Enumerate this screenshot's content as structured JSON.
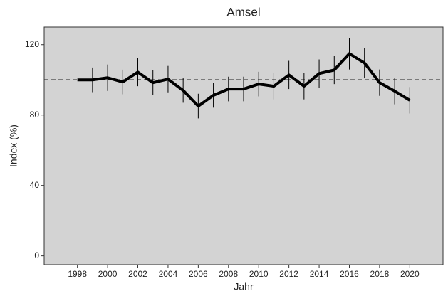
{
  "chart_data": {
    "type": "line",
    "title": "Amsel",
    "x_label": "Jahr",
    "y_label": "Index (%)",
    "x": [
      1998,
      1999,
      2000,
      2001,
      2002,
      2003,
      2004,
      2005,
      2006,
      2007,
      2008,
      2009,
      2010,
      2011,
      2012,
      2013,
      2014,
      2015,
      2016,
      2017,
      2018,
      2019,
      2020
    ],
    "series": [
      {
        "color": "#000000",
        "values": [
          100,
          100,
          101.2,
          98.8,
          104.4,
          98.4,
          100.4,
          94,
          85.1,
          91.2,
          94.8,
          94.8,
          97.6,
          96.4,
          102.8,
          96.4,
          103.6,
          105.6,
          114.9,
          109.6,
          98.4,
          93.6,
          88.4
        ],
        "errors": [
          null,
          7,
          7.5,
          7,
          8,
          7,
          7.5,
          7,
          7,
          7,
          7,
          7,
          7,
          7.5,
          8,
          7.5,
          8,
          8,
          9,
          8.5,
          7.5,
          7.5,
          7.5
        ]
      }
    ],
    "hline": 100,
    "xlim": [
      1995.8,
      2022.2
    ],
    "xticks": [
      1998,
      2000,
      2002,
      2004,
      2006,
      2008,
      2010,
      2012,
      2014,
      2016,
      2018,
      2020
    ],
    "ylim": [
      -5,
      130
    ],
    "yticks": [
      0,
      40,
      80,
      120
    ],
    "grid": false,
    "panel_color": "#d3d3d3"
  }
}
